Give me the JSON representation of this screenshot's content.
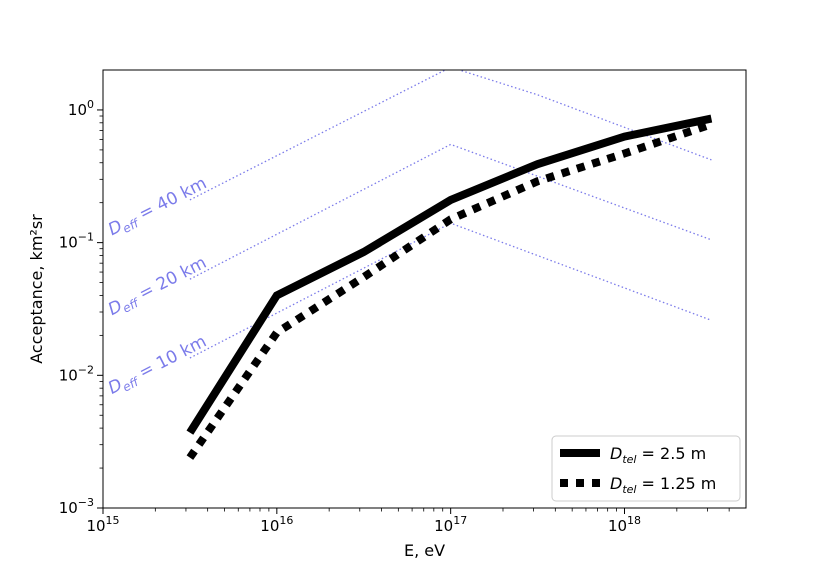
{
  "chart_data": {
    "type": "line",
    "xlabel": "E, eV",
    "ylabel": "Acceptance, km²sr",
    "xscale": "log",
    "yscale": "log",
    "xlim": [
      1000000000000000.0,
      5e+18
    ],
    "ylim": [
      0.001,
      2
    ],
    "grid": false,
    "legend_position": "lower-right",
    "x_ticks": [
      {
        "value": 1000000000000000.0,
        "base": "10",
        "exp": "15"
      },
      {
        "value": 1e+16,
        "base": "10",
        "exp": "16"
      },
      {
        "value": 1e+17,
        "base": "10",
        "exp": "17"
      },
      {
        "value": 1e+18,
        "base": "10",
        "exp": "18"
      }
    ],
    "y_ticks": [
      {
        "value": 0.001,
        "base": "10",
        "exp": "−3"
      },
      {
        "value": 0.01,
        "base": "10",
        "exp": "−2"
      },
      {
        "value": 0.1,
        "base": "10",
        "exp": "−1"
      },
      {
        "value": 1,
        "base": "10",
        "exp": "0"
      }
    ],
    "series": [
      {
        "name": "D_tel = 2.5 m",
        "legend_main": "D",
        "legend_sub": "tel",
        "legend_rest": " = 2.5 m",
        "style": "solid",
        "color": "#000000",
        "x": [
          3160000000000000.0,
          1e+16,
          3.16e+16,
          1e+17,
          3.16e+17,
          1e+18,
          3.16e+18
        ],
        "y": [
          0.0037,
          0.04,
          0.085,
          0.21,
          0.39,
          0.63,
          0.86
        ]
      },
      {
        "name": "D_tel = 1.25 m",
        "legend_main": "D",
        "legend_sub": "tel",
        "legend_rest": " = 1.25 m",
        "style": "dotted",
        "color": "#000000",
        "x": [
          3160000000000000.0,
          1e+16,
          3.16e+16,
          1e+17,
          3.16e+17,
          1e+18,
          3.16e+18
        ],
        "y": [
          0.0024,
          0.021,
          0.055,
          0.15,
          0.29,
          0.47,
          0.78
        ]
      }
    ],
    "reference_lines": [
      {
        "label_main": "D",
        "label_sub": "eff",
        "label_rest": " = 40 km",
        "style": "dotted",
        "color": "#7b7bea",
        "x": [
          3160000000000000.0,
          1e+17,
          3.16e+17,
          3.16e+18
        ],
        "y": [
          0.21,
          2.1,
          1.3,
          0.42
        ]
      },
      {
        "label_main": "D",
        "label_sub": "eff",
        "label_rest": " = 20 km",
        "style": "dotted",
        "color": "#7b7bea",
        "x": [
          3160000000000000.0,
          1e+17,
          3.16e+18
        ],
        "y": [
          0.053,
          0.55,
          0.105
        ]
      },
      {
        "label_main": "D",
        "label_sub": "eff",
        "label_rest": " = 10 km",
        "style": "dotted",
        "color": "#7b7bea",
        "x": [
          3160000000000000.0,
          1e+17,
          3.16e+18
        ],
        "y": [
          0.0135,
          0.14,
          0.026
        ]
      }
    ]
  }
}
